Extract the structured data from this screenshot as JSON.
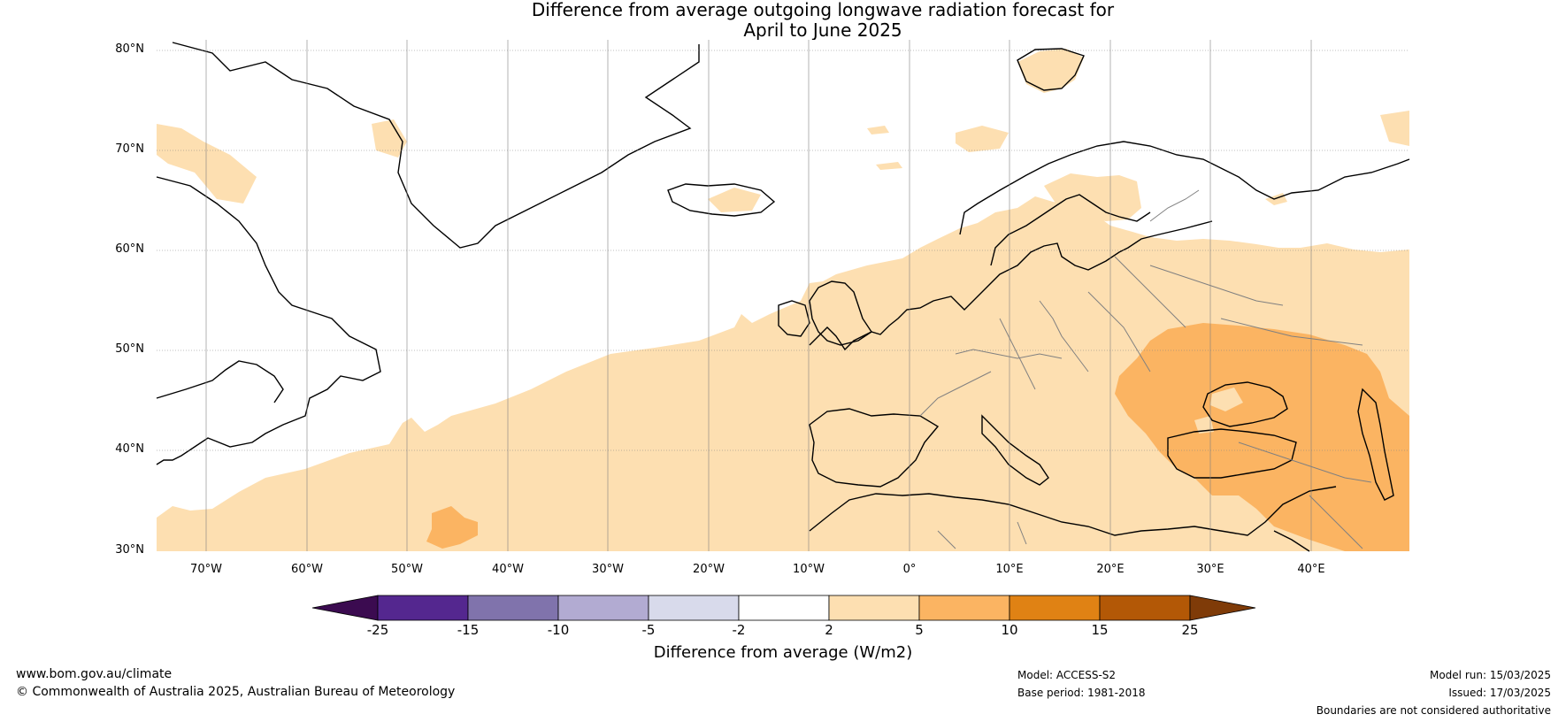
{
  "title": {
    "line1": "Difference from average outgoing longwave radiation forecast for",
    "line2": "April to June 2025"
  },
  "map": {
    "lat_labels": [
      "80°N",
      "70°N",
      "60°N",
      "50°N",
      "40°N",
      "30°N"
    ],
    "lon_labels": [
      "70°W",
      "60°W",
      "50°W",
      "40°W",
      "30°W",
      "20°W",
      "10°W",
      "0°",
      "10°E",
      "20°E",
      "30°E",
      "40°E"
    ],
    "colors": {
      "ocean": "#ffffff",
      "light_orange": "#fddfb1",
      "mid_orange": "#fbb462",
      "coast": "#000000",
      "border": "#808080",
      "grid": "#808080"
    }
  },
  "colorbar": {
    "ticks": [
      "-25",
      "-15",
      "-10",
      "-5",
      "-2",
      "2",
      "5",
      "10",
      "15",
      "25"
    ],
    "colors": [
      "#3b0b50",
      "#54278f",
      "#8073ac",
      "#b2abd2",
      "#d8daeb",
      "#ffffff",
      "#fddfb1",
      "#fbb462",
      "#e08214",
      "#b35806",
      "#7f3b08"
    ],
    "label": "Difference from average (W/m2)"
  },
  "footer": {
    "website": "www.bom.gov.au/climate",
    "copyright": "© Commonwealth of Australia 2025, Australian Bureau of Meteorology",
    "model": "Model: ACCESS-S2",
    "base_period": "Base period: 1981-2018",
    "model_run": "Model run: 15/03/2025",
    "issued": "Issued: 17/03/2025",
    "disclaimer": "Boundaries are not considered authoritative"
  }
}
